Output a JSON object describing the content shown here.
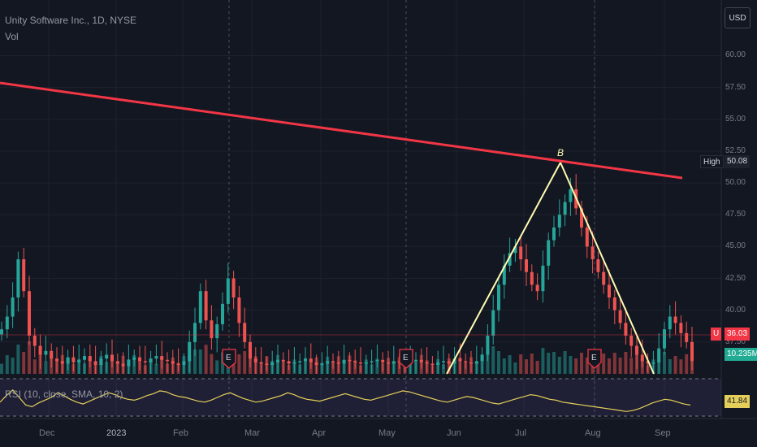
{
  "chart_data": {
    "type": "candlestick",
    "title": "Unity Software Inc., 1D, NYSE",
    "volume_label": "Vol",
    "rsi_label": "RSI (10, close, SMA, 10, 2)",
    "currency": "USD",
    "price_ticks": [
      "60.00",
      "57.50",
      "55.00",
      "52.50",
      "50.00",
      "47.50",
      "45.00",
      "42.50",
      "40.00",
      "37.50"
    ],
    "price_range": [
      35.0,
      61.5
    ],
    "time_labels": [
      "Dec",
      "2023",
      "Feb",
      "Mar",
      "Apr",
      "May",
      "Jun",
      "Jul",
      "Aug",
      "Sep"
    ],
    "high_label": "High",
    "high_value": "50.08",
    "last_symbol": "U",
    "last_price": "36.03",
    "volume_value": "10.235M",
    "rsi_value": "41.84",
    "earnings_marker": "E",
    "pattern_point_label": "B",
    "resistance_line": {
      "start": {
        "date": "Nov 2022",
        "price": 56.6
      },
      "end": {
        "date": "Sep 2023",
        "price": 48.7
      }
    },
    "pattern_lines": [
      {
        "from": {
          "date": "Jun 2023",
          "price": 29.0
        },
        "to": {
          "date": "Jul 2023",
          "price": 50.08
        }
      },
      {
        "from": {
          "date": "Jul 2023",
          "price": 50.08
        },
        "to": {
          "date": "Sep 2023",
          "price": 30.0
        }
      }
    ],
    "close_series": [
      38.5,
      39.5,
      41.0,
      44.0,
      41.5,
      38.0,
      37.2,
      36.5,
      36.8,
      36.2,
      36.0,
      35.8,
      36.3,
      35.9,
      36.1,
      36.4,
      36.0,
      35.7,
      36.2,
      36.5,
      36.0,
      35.8,
      35.6,
      36.1,
      36.3,
      36.0,
      35.9,
      36.2,
      36.4,
      36.1,
      36.0,
      35.8,
      35.7,
      36.0,
      37.5,
      39.0,
      41.5,
      39.2,
      37.8,
      38.9,
      40.5,
      42.5,
      41.0,
      39.0,
      37.5,
      36.2,
      35.9,
      35.8,
      35.7,
      35.9,
      36.1,
      36.0,
      35.8,
      35.9,
      36.0,
      36.2,
      35.9,
      35.7,
      35.8,
      36.0,
      35.9,
      35.8,
      36.1,
      36.0,
      35.9,
      35.8,
      35.9,
      36.0,
      36.1,
      35.9,
      35.8,
      36.0,
      35.9,
      35.8,
      36.0,
      36.1,
      35.9,
      35.8,
      35.7,
      35.9,
      36.0,
      35.8,
      36.2,
      36.0,
      35.9,
      35.8,
      36.0,
      36.5,
      38.0,
      40.0,
      42.0,
      43.5,
      44.5,
      45.0,
      44.0,
      43.0,
      42.0,
      41.5,
      43.5,
      45.5,
      46.5,
      47.5,
      48.5,
      49.5,
      48.0,
      46.5,
      45.0,
      44.0,
      43.0,
      42.0,
      41.0,
      40.0,
      39.0,
      38.0,
      37.2,
      36.5,
      36.0,
      35.8,
      35.9,
      37.0,
      38.5,
      39.5,
      39.0,
      38.2,
      37.5,
      36.0
    ],
    "rsi_series": [
      45,
      52,
      58,
      50,
      42,
      40,
      44,
      47,
      50,
      55,
      52,
      48,
      45,
      43,
      46,
      49,
      52,
      55,
      53,
      50,
      48,
      47,
      49,
      52,
      54,
      57,
      56,
      53,
      51,
      50,
      48,
      46,
      45,
      47,
      50,
      53,
      55,
      52,
      49,
      47,
      45,
      46,
      48,
      50,
      52,
      55,
      53,
      50,
      48,
      47,
      46,
      48,
      50,
      52,
      54,
      52,
      50,
      48,
      47,
      49,
      51,
      53,
      55,
      57,
      56,
      54,
      52,
      50,
      48,
      46,
      45,
      47,
      49,
      51,
      50,
      48,
      46,
      44,
      43,
      45,
      47,
      49,
      51,
      53,
      52,
      50,
      48,
      47,
      45,
      44,
      43,
      42,
      41,
      40,
      39,
      38,
      37,
      36,
      35,
      36,
      38,
      41,
      44,
      46,
      48,
      47,
      45,
      43,
      41.84
    ]
  }
}
